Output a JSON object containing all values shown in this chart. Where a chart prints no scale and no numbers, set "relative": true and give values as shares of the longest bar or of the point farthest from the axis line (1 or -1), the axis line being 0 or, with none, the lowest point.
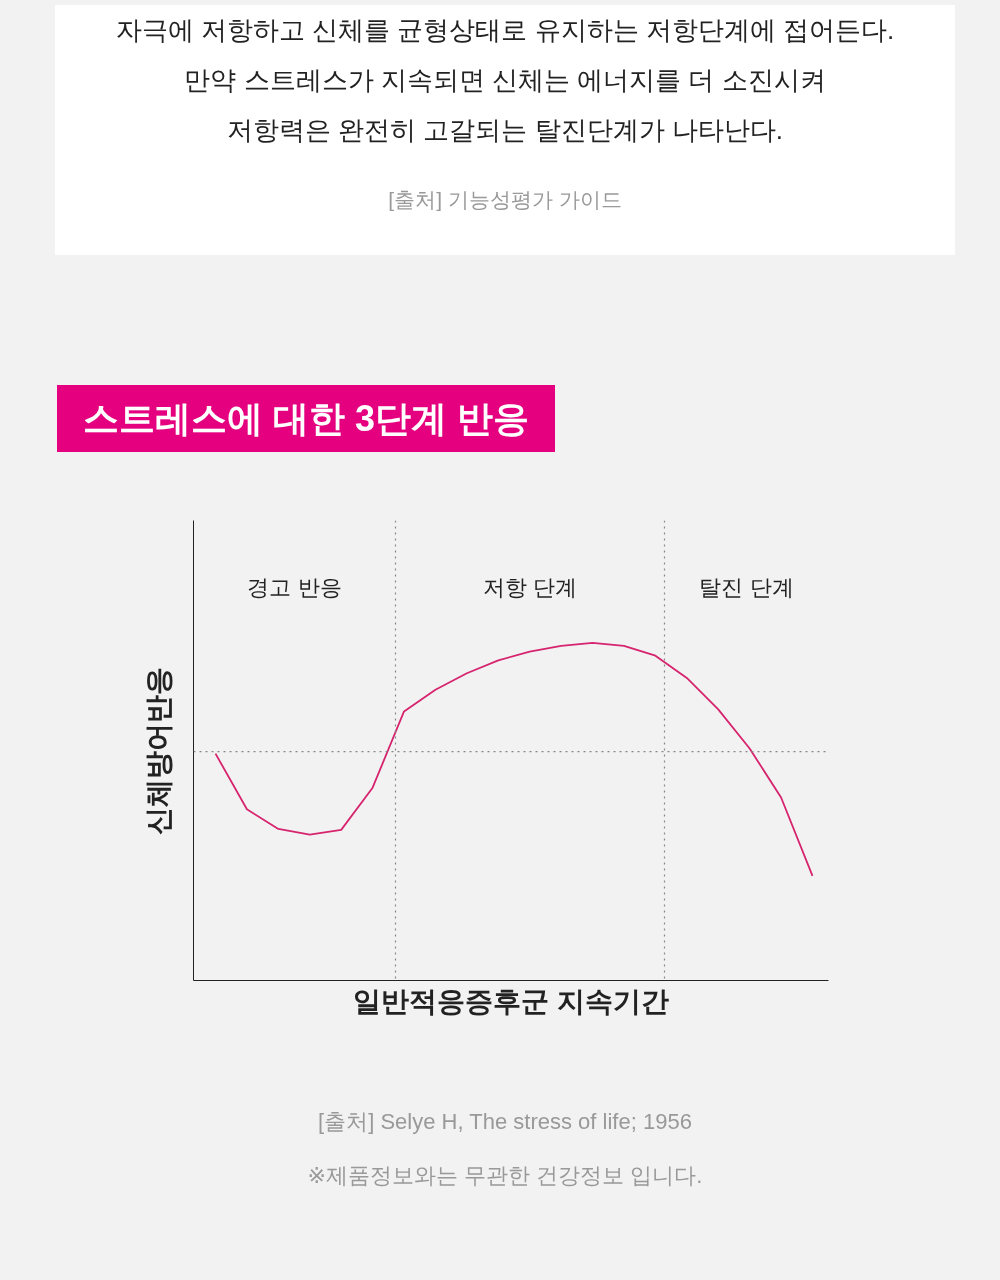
{
  "chart_data": {
    "type": "line",
    "relative": true,
    "title": "스트레스에 대한 3단계 반응",
    "xlabel": "일반적응증후군 지속기간",
    "ylabel": "신체방어반응",
    "categories": [
      null,
      null,
      null,
      null,
      null,
      null,
      null,
      null,
      null,
      null,
      null,
      null,
      null,
      null,
      null,
      null,
      null,
      null,
      null,
      null
    ],
    "series": [
      {
        "color": "#d6246e",
        "values": [
          0.672,
          0.507,
          0.449,
          0.432,
          0.446,
          0.571,
          0.797,
          0.861,
          0.91,
          0.948,
          0.974,
          0.991,
          1.0,
          0.991,
          0.962,
          0.896,
          0.803,
          0.687,
          0.542,
          0.31
        ]
      }
    ],
    "ref_lines": [
      {
        "axis": "y",
        "value": 0.678,
        "color": "#888888",
        "line_style": "dotted"
      }
    ],
    "marker": "none",
    "line_style": "solid",
    "annotations": [
      "자극에 저항하고 신체를 균형상태로 유지하는 저항단계에 접어든다.",
      "만약 스트레스가 지속되면 신체는 에너지를 더 소진시켜",
      "저항력은 완전히 고갈되는 탈진단계가 나타난다.",
      "[출처] 기능성평가 가이드",
      "경고 반응",
      "저항 단계",
      "탈진 단계",
      "[출처] Selye H, The stress of life; 1956",
      "※제품정보와는 무관한 건강정보 입니다."
    ]
  }
}
